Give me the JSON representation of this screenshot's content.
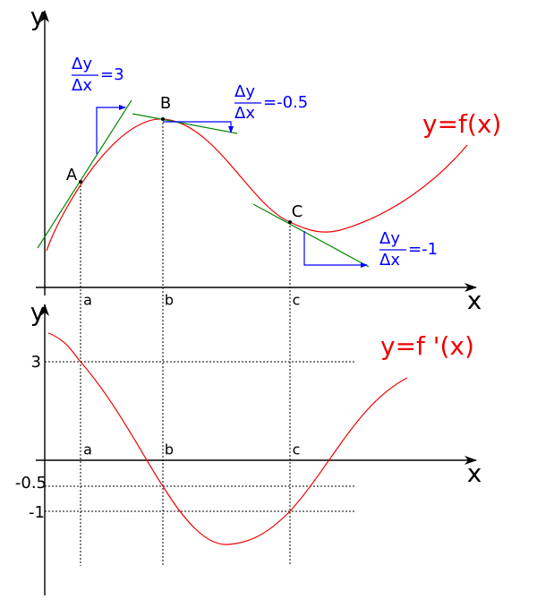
{
  "top_graph": {
    "y_axis": "y",
    "x_axis": "x",
    "function_label": "y=f(x)",
    "points": [
      {
        "label": "A"
      },
      {
        "label": "B"
      },
      {
        "label": "C"
      }
    ],
    "x_marks": [
      "a",
      "b",
      "c"
    ],
    "slopes": [
      {
        "numerator": "Δy",
        "denominator": "Δx",
        "value": "=3"
      },
      {
        "numerator": "Δy",
        "denominator": "Δx",
        "value": "=-0.5"
      },
      {
        "numerator": "Δy",
        "denominator": "Δx",
        "value": "=-1"
      }
    ]
  },
  "bottom_graph": {
    "y_axis": "y",
    "x_axis": "x",
    "function_label": "y=f '(x)",
    "x_marks": [
      "a",
      "b",
      "c"
    ],
    "y_marks": [
      "3",
      "-0.5",
      "-1"
    ]
  }
}
